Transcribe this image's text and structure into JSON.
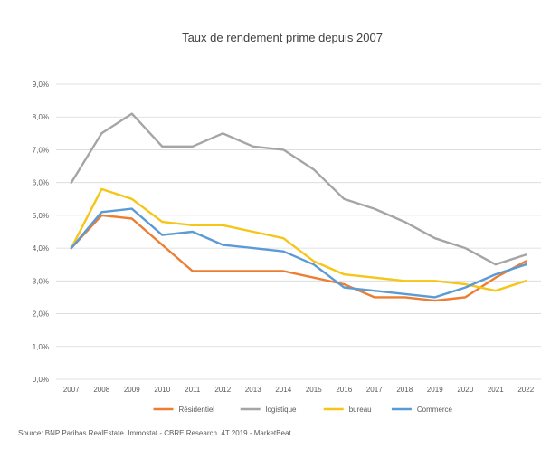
{
  "chart_data": {
    "type": "line",
    "title": "Taux de rendement prime depuis 2007",
    "x": [
      "2007",
      "2008",
      "2009",
      "2010",
      "2011",
      "2012",
      "2013",
      "2014",
      "2015",
      "2016",
      "2017",
      "2018",
      "2019",
      "2020",
      "2021",
      "2022"
    ],
    "y_ticks": [
      "0,0%",
      "1,0%",
      "2,0%",
      "3,0%",
      "4,0%",
      "5,0%",
      "6,0%",
      "7,0%",
      "8,0%",
      "9,0%"
    ],
    "ylim": [
      0,
      9
    ],
    "grid": "horizontal",
    "legend_position": "bottom",
    "series": [
      {
        "name": "Résidentiel",
        "color": "#ED7D31",
        "values": [
          4.0,
          5.0,
          4.9,
          4.1,
          3.3,
          3.3,
          3.3,
          3.3,
          3.1,
          2.9,
          2.5,
          2.5,
          2.4,
          2.5,
          3.1,
          3.6
        ]
      },
      {
        "name": "logistique",
        "color": "#A5A5A5",
        "values": [
          6.0,
          7.5,
          8.1,
          7.1,
          7.1,
          7.5,
          7.1,
          7.0,
          6.4,
          5.5,
          5.2,
          4.8,
          4.3,
          4.0,
          3.5,
          3.8
        ]
      },
      {
        "name": "bureau",
        "color": "#F5C518",
        "values": [
          4.0,
          5.8,
          5.5,
          4.8,
          4.7,
          4.7,
          4.5,
          4.3,
          3.6,
          3.2,
          3.1,
          3.0,
          3.0,
          2.9,
          2.7,
          3.0
        ]
      },
      {
        "name": "Commerce",
        "color": "#5B9BD5",
        "values": [
          4.0,
          5.1,
          5.2,
          4.4,
          4.5,
          4.1,
          4.0,
          3.9,
          3.5,
          2.8,
          2.7,
          2.6,
          2.5,
          2.8,
          3.2,
          3.5
        ]
      }
    ]
  },
  "source": "Source: BNP Paribas RealEstate. Immostat - CBRE Research. 4T 2019 - MarketBeat."
}
